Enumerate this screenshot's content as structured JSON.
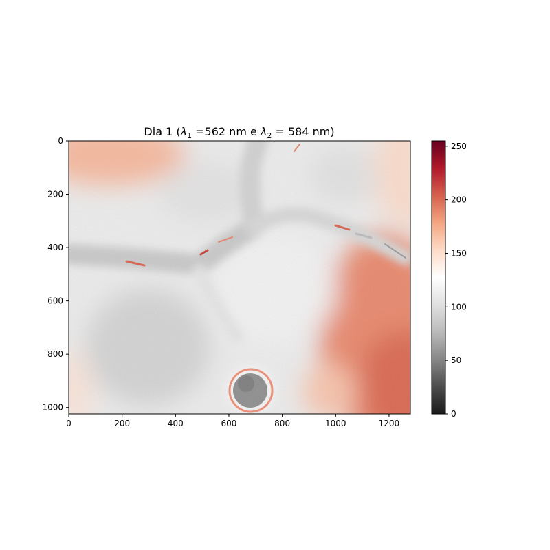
{
  "chart_data": {
    "type": "heatmap",
    "title_parts": {
      "prefix": "Dia 1 (",
      "lambda": "λ",
      "sub1": "1",
      "mid": " =562 nm e ",
      "sub2": "2",
      "suffix": " = 584 nm)"
    },
    "title": "Dia 1 (λ1 =562 nm e λ2 = 584 nm)",
    "xlabel": "",
    "ylabel": "",
    "xlim": [
      0,
      1280
    ],
    "ylim": [
      1024,
      0
    ],
    "x_ticks": [
      0,
      200,
      400,
      600,
      800,
      1000,
      1200
    ],
    "y_ticks": [
      0,
      200,
      400,
      600,
      800,
      1000
    ],
    "colorbar": {
      "colormap": "RdGy_r",
      "range": [
        0,
        255
      ],
      "ticks": [
        0,
        50,
        100,
        150,
        200,
        250
      ],
      "colors": [
        "#1a1a1a",
        "#4d4d4d",
        "#878787",
        "#bababa",
        "#e0e0e0",
        "#ffffff",
        "#fddbc7",
        "#f4a582",
        "#d6604d",
        "#b2182b",
        "#67001f"
      ]
    },
    "grid": false,
    "legend": "none"
  }
}
